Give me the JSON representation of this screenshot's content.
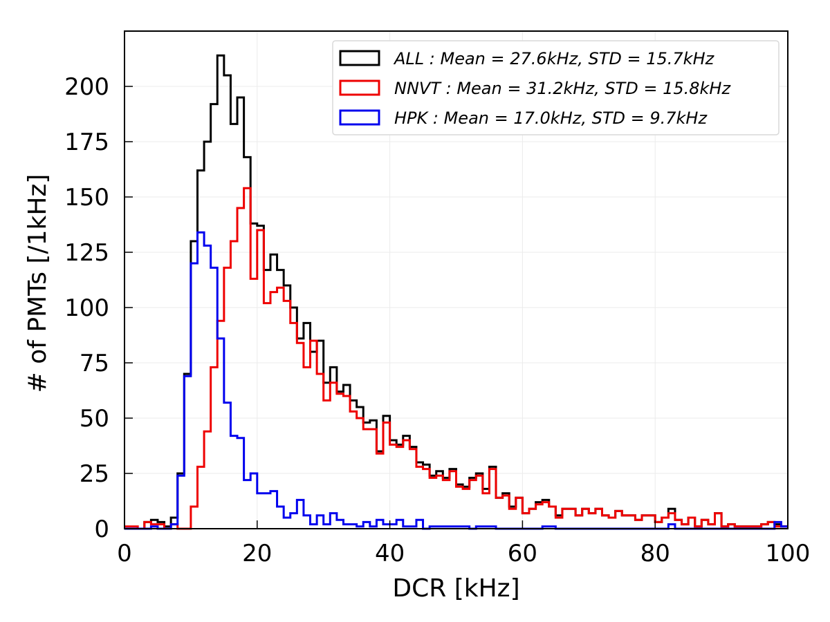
{
  "chart_data": {
    "type": "histogram-step",
    "xlabel": "DCR [kHz]",
    "ylabel": "# of PMTs [/1kHz]",
    "xlim": [
      0,
      100
    ],
    "ylim": [
      0,
      225
    ],
    "xticks": [
      0,
      20,
      40,
      60,
      80,
      100
    ],
    "yticks": [
      0,
      25,
      50,
      75,
      100,
      125,
      150,
      175,
      200
    ],
    "grid": true,
    "legend_position": "top-right",
    "series": [
      {
        "name": "ALL",
        "legend_label": "ALL : Mean = 27.6kHz, STD = 15.7kHz",
        "color": "#000000",
        "bins": [
          [
            1,
            0
          ],
          [
            2,
            0
          ],
          [
            3,
            0
          ],
          [
            4,
            3
          ],
          [
            5,
            4
          ],
          [
            6,
            3
          ],
          [
            7,
            1
          ],
          [
            8,
            5
          ],
          [
            9,
            25
          ],
          [
            10,
            70
          ],
          [
            11,
            130
          ],
          [
            12,
            162
          ],
          [
            13,
            175
          ],
          [
            14,
            192
          ],
          [
            15,
            214
          ],
          [
            16,
            205
          ],
          [
            17,
            183
          ],
          [
            18,
            195
          ],
          [
            19,
            168
          ],
          [
            20,
            138
          ],
          [
            21,
            137
          ],
          [
            22,
            117
          ],
          [
            23,
            124
          ],
          [
            24,
            117
          ],
          [
            25,
            110
          ],
          [
            26,
            100
          ],
          [
            27,
            86
          ],
          [
            28,
            93
          ],
          [
            29,
            80
          ],
          [
            30,
            85
          ],
          [
            31,
            66
          ],
          [
            32,
            73
          ],
          [
            33,
            62
          ],
          [
            34,
            65
          ],
          [
            35,
            58
          ],
          [
            36,
            55
          ],
          [
            37,
            48
          ],
          [
            38,
            49
          ],
          [
            39,
            35
          ],
          [
            40,
            51
          ],
          [
            41,
            40
          ],
          [
            42,
            38
          ],
          [
            43,
            42
          ],
          [
            44,
            37
          ],
          [
            45,
            30
          ],
          [
            46,
            29
          ],
          [
            47,
            24
          ],
          [
            48,
            26
          ],
          [
            49,
            23
          ],
          [
            50,
            27
          ],
          [
            51,
            20
          ],
          [
            52,
            19
          ],
          [
            53,
            23
          ],
          [
            54,
            25
          ],
          [
            55,
            18
          ],
          [
            56,
            28
          ],
          [
            57,
            14
          ],
          [
            58,
            16
          ],
          [
            59,
            10
          ],
          [
            60,
            14
          ],
          [
            61,
            7
          ],
          [
            62,
            9
          ],
          [
            63,
            12
          ],
          [
            64,
            13
          ],
          [
            65,
            10
          ],
          [
            66,
            6
          ],
          [
            67,
            9
          ],
          [
            68,
            9
          ],
          [
            69,
            6
          ],
          [
            70,
            9
          ],
          [
            71,
            7
          ],
          [
            72,
            9
          ],
          [
            73,
            6
          ],
          [
            74,
            5
          ],
          [
            75,
            8
          ],
          [
            76,
            6
          ],
          [
            77,
            6
          ],
          [
            78,
            4
          ],
          [
            79,
            6
          ],
          [
            80,
            6
          ],
          [
            81,
            3
          ],
          [
            82,
            5
          ],
          [
            83,
            9
          ],
          [
            84,
            4
          ],
          [
            85,
            2
          ],
          [
            86,
            5
          ],
          [
            87,
            1
          ],
          [
            88,
            4
          ],
          [
            89,
            2
          ],
          [
            90,
            7
          ],
          [
            91,
            1
          ],
          [
            92,
            2
          ],
          [
            93,
            1
          ],
          [
            94,
            1
          ],
          [
            95,
            1
          ],
          [
            96,
            1
          ],
          [
            97,
            2
          ],
          [
            98,
            3
          ],
          [
            99,
            2
          ],
          [
            100,
            1
          ]
        ]
      },
      {
        "name": "NNVT",
        "legend_label": "NNVT : Mean = 31.2kHz, STD = 15.8kHz",
        "color": "#ee0000",
        "bins": [
          [
            1,
            1
          ],
          [
            2,
            1
          ],
          [
            3,
            0
          ],
          [
            4,
            3
          ],
          [
            5,
            2
          ],
          [
            6,
            2
          ],
          [
            7,
            0
          ],
          [
            8,
            2
          ],
          [
            9,
            0
          ],
          [
            10,
            0
          ],
          [
            11,
            10
          ],
          [
            12,
            28
          ],
          [
            13,
            44
          ],
          [
            14,
            73
          ],
          [
            15,
            94
          ],
          [
            16,
            118
          ],
          [
            17,
            130
          ],
          [
            18,
            145
          ],
          [
            19,
            154
          ],
          [
            20,
            113
          ],
          [
            21,
            135
          ],
          [
            22,
            102
          ],
          [
            23,
            107
          ],
          [
            24,
            109
          ],
          [
            25,
            103
          ],
          [
            26,
            93
          ],
          [
            27,
            84
          ],
          [
            28,
            73
          ],
          [
            29,
            85
          ],
          [
            30,
            70
          ],
          [
            31,
            58
          ],
          [
            32,
            66
          ],
          [
            33,
            61
          ],
          [
            34,
            60
          ],
          [
            35,
            53
          ],
          [
            36,
            50
          ],
          [
            37,
            45
          ],
          [
            38,
            45
          ],
          [
            39,
            34
          ],
          [
            40,
            48
          ],
          [
            41,
            38
          ],
          [
            42,
            37
          ],
          [
            43,
            40
          ],
          [
            44,
            36
          ],
          [
            45,
            28
          ],
          [
            46,
            27
          ],
          [
            47,
            23
          ],
          [
            48,
            24
          ],
          [
            49,
            22
          ],
          [
            50,
            26
          ],
          [
            51,
            19
          ],
          [
            52,
            18
          ],
          [
            53,
            22
          ],
          [
            54,
            24
          ],
          [
            55,
            16
          ],
          [
            56,
            27
          ],
          [
            57,
            14
          ],
          [
            58,
            15
          ],
          [
            59,
            9
          ],
          [
            60,
            14
          ],
          [
            61,
            7
          ],
          [
            62,
            9
          ],
          [
            63,
            11
          ],
          [
            64,
            12
          ],
          [
            65,
            10
          ],
          [
            66,
            5
          ],
          [
            67,
            9
          ],
          [
            68,
            9
          ],
          [
            69,
            6
          ],
          [
            70,
            9
          ],
          [
            71,
            7
          ],
          [
            72,
            9
          ],
          [
            73,
            6
          ],
          [
            74,
            5
          ],
          [
            75,
            8
          ],
          [
            76,
            6
          ],
          [
            77,
            6
          ],
          [
            78,
            4
          ],
          [
            79,
            6
          ],
          [
            80,
            6
          ],
          [
            81,
            3
          ],
          [
            82,
            5
          ],
          [
            83,
            7
          ],
          [
            84,
            4
          ],
          [
            85,
            2
          ],
          [
            86,
            5
          ],
          [
            87,
            1
          ],
          [
            88,
            4
          ],
          [
            89,
            2
          ],
          [
            90,
            7
          ],
          [
            91,
            1
          ],
          [
            92,
            2
          ],
          [
            93,
            1
          ],
          [
            94,
            1
          ],
          [
            95,
            1
          ],
          [
            96,
            1
          ],
          [
            97,
            2
          ],
          [
            98,
            3
          ],
          [
            99,
            1
          ],
          [
            100,
            1
          ]
        ]
      },
      {
        "name": "HPK",
        "legend_label": "HPK : Mean = 17.0kHz, STD = 9.7kHz",
        "color": "#0000ee",
        "bins": [
          [
            1,
            0
          ],
          [
            2,
            0
          ],
          [
            3,
            0
          ],
          [
            4,
            0
          ],
          [
            5,
            1
          ],
          [
            6,
            0
          ],
          [
            7,
            0
          ],
          [
            8,
            2
          ],
          [
            9,
            24
          ],
          [
            10,
            69
          ],
          [
            11,
            120
          ],
          [
            12,
            134
          ],
          [
            13,
            128
          ],
          [
            14,
            118
          ],
          [
            15,
            86
          ],
          [
            16,
            57
          ],
          [
            17,
            42
          ],
          [
            18,
            41
          ],
          [
            19,
            22
          ],
          [
            20,
            25
          ],
          [
            21,
            16
          ],
          [
            22,
            16
          ],
          [
            23,
            17
          ],
          [
            24,
            10
          ],
          [
            25,
            5
          ],
          [
            26,
            7
          ],
          [
            27,
            13
          ],
          [
            28,
            6
          ],
          [
            29,
            2
          ],
          [
            30,
            6
          ],
          [
            31,
            2
          ],
          [
            32,
            7
          ],
          [
            33,
            4
          ],
          [
            34,
            2
          ],
          [
            35,
            2
          ],
          [
            36,
            1
          ],
          [
            37,
            3
          ],
          [
            38,
            1
          ],
          [
            39,
            4
          ],
          [
            40,
            2
          ],
          [
            41,
            2
          ],
          [
            42,
            4
          ],
          [
            43,
            1
          ],
          [
            44,
            1
          ],
          [
            45,
            4
          ],
          [
            46,
            0
          ],
          [
            47,
            1
          ],
          [
            48,
            1
          ],
          [
            49,
            1
          ],
          [
            50,
            1
          ],
          [
            51,
            1
          ],
          [
            52,
            1
          ],
          [
            53,
            0
          ],
          [
            54,
            1
          ],
          [
            55,
            1
          ],
          [
            56,
            1
          ],
          [
            57,
            0
          ],
          [
            58,
            0
          ],
          [
            59,
            0
          ],
          [
            60,
            0
          ],
          [
            61,
            0
          ],
          [
            62,
            0
          ],
          [
            63,
            0
          ],
          [
            64,
            1
          ],
          [
            65,
            1
          ],
          [
            66,
            0
          ],
          [
            67,
            0
          ],
          [
            68,
            0
          ],
          [
            69,
            0
          ],
          [
            70,
            0
          ],
          [
            71,
            0
          ],
          [
            72,
            0
          ],
          [
            73,
            0
          ],
          [
            74,
            0
          ],
          [
            75,
            0
          ],
          [
            76,
            0
          ],
          [
            77,
            0
          ],
          [
            78,
            0
          ],
          [
            79,
            0
          ],
          [
            80,
            0
          ],
          [
            81,
            0
          ],
          [
            82,
            0
          ],
          [
            83,
            2
          ],
          [
            84,
            0
          ],
          [
            85,
            0
          ],
          [
            86,
            0
          ],
          [
            87,
            0
          ],
          [
            88,
            0
          ],
          [
            89,
            0
          ],
          [
            90,
            0
          ],
          [
            91,
            0
          ],
          [
            92,
            0
          ],
          [
            93,
            0
          ],
          [
            94,
            0
          ],
          [
            95,
            0
          ],
          [
            96,
            0
          ],
          [
            97,
            0
          ],
          [
            98,
            0
          ],
          [
            99,
            3
          ],
          [
            100,
            1
          ]
        ]
      }
    ]
  }
}
